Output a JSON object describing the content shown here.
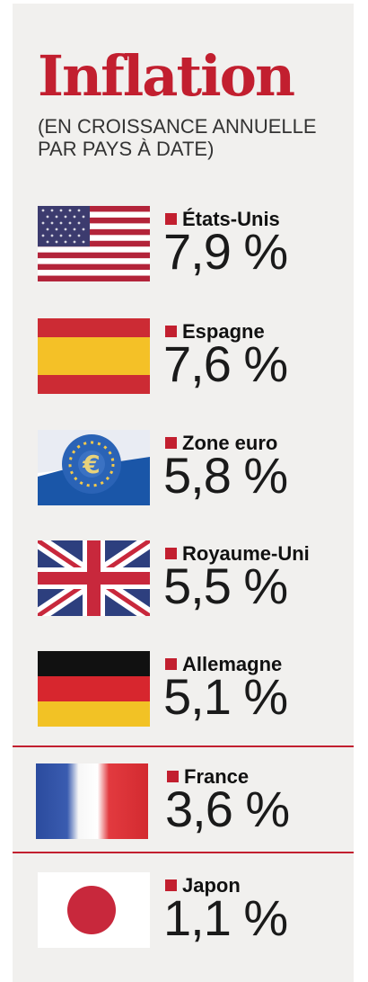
{
  "chart_data": {
    "type": "table",
    "title": "Inflation",
    "subtitle_lines": [
      "(EN CROISSANCE ANNUELLE",
      "PAR PAYS À DATE)"
    ],
    "highlight": "France",
    "colors": {
      "accent": "#c21f2f",
      "background": "#f1f0ee"
    },
    "rows": [
      {
        "label": "États-Unis",
        "value": 7.9,
        "display": "7,9 %",
        "flag": "us-flag"
      },
      {
        "label": "Espagne",
        "value": 7.6,
        "display": "7,6 %",
        "flag": "spain-flag"
      },
      {
        "label": "Zone euro",
        "value": 5.8,
        "display": "5,8 %",
        "flag": "eurozone-flag"
      },
      {
        "label": "Royaume-Uni",
        "value": 5.5,
        "display": "5,5 %",
        "flag": "uk-flag"
      },
      {
        "label": "Allemagne",
        "value": 5.1,
        "display": "5,1 %",
        "flag": "germany-flag"
      },
      {
        "label": "France",
        "value": 3.6,
        "display": "3,6 %",
        "flag": "france-flag"
      },
      {
        "label": "Japon",
        "value": 1.1,
        "display": "1,1 %",
        "flag": "japan-flag"
      }
    ]
  }
}
